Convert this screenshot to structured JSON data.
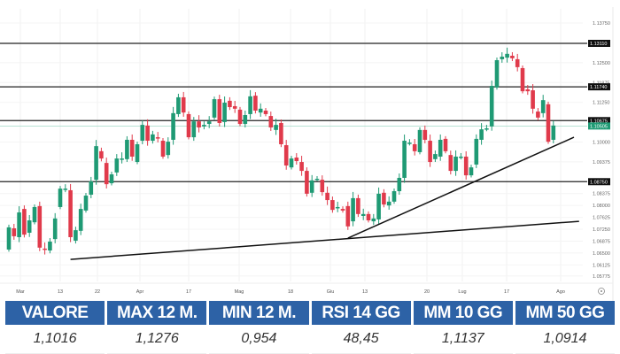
{
  "chart_data": {
    "type": "candlestick",
    "y_axis_ticks": [
      "1.13750",
      "1.12500",
      "1.11875",
      "1.11250",
      "1.10000",
      "1.09375",
      "1.08375",
      "1.08000",
      "1.07625",
      "1.07250",
      "1.06875",
      "1.06500",
      "1.06125",
      "1.05775"
    ],
    "x_axis_ticks": [
      "Mar",
      "13",
      "22",
      "Apr",
      "17",
      "Mag",
      "18",
      "Giu",
      "13",
      "20",
      "Lug",
      "17",
      "Ago"
    ],
    "ylim": [
      1.056,
      1.145
    ],
    "grid": true,
    "levels": [
      {
        "value": 1.1311,
        "label": "1.13110"
      },
      {
        "value": 1.1174,
        "label": "1.11740"
      },
      {
        "value": 1.10675,
        "label": "1.10675"
      },
      {
        "value": 1.0875,
        "label": "1.08750"
      }
    ],
    "last_price": {
      "value": 1.10505,
      "label": "1.10505"
    },
    "trendlines": [
      {
        "from": [
          12,
          1.063
        ],
        "to": [
          111,
          1.075
        ]
      },
      {
        "from": [
          66,
          1.0697
        ],
        "to": [
          110,
          1.1015
        ]
      }
    ],
    "candles_open_close": [
      [
        1.0661,
        1.0731
      ],
      [
        1.0728,
        1.0703
      ],
      [
        1.07,
        1.0778
      ],
      [
        1.0789,
        1.0708
      ],
      [
        1.0714,
        1.0753
      ],
      [
        1.0747,
        1.0795
      ],
      [
        1.0798,
        1.0667
      ],
      [
        1.0664,
        1.0661
      ],
      [
        1.0658,
        1.0686
      ],
      [
        1.0694,
        1.0759
      ],
      [
        1.0795,
        1.0853
      ],
      [
        1.0853,
        1.0853
      ],
      [
        1.0848,
        1.07
      ],
      [
        1.0689,
        1.0722
      ],
      [
        1.072,
        1.0789
      ],
      [
        1.0784,
        1.0831
      ],
      [
        1.0834,
        1.0876
      ],
      [
        1.0881,
        1.0987
      ],
      [
        1.0971,
        1.0948
      ],
      [
        1.0934,
        1.0867
      ],
      [
        1.087,
        1.0898
      ],
      [
        1.0904,
        1.0948
      ],
      [
        1.0948,
        1.0948
      ],
      [
        1.0946,
        1.1007
      ],
      [
        1.1007,
        1.0954
      ],
      [
        1.0937,
        1.0993
      ],
      [
        1.1004,
        1.1054
      ],
      [
        1.1052,
        1.1004
      ],
      [
        1.1004,
        1.1024
      ],
      [
        1.1015,
        1.1012
      ],
      [
        1.1004,
        1.0954
      ],
      [
        1.0959,
        1.1001
      ],
      [
        1.1007,
        1.1091
      ],
      [
        1.1088,
        1.1141
      ],
      [
        1.1141,
        1.1093
      ],
      [
        1.1088,
        1.1015
      ],
      [
        1.1015,
        1.1065
      ],
      [
        1.1065,
        1.1046
      ],
      [
        1.1049,
        1.1054
      ],
      [
        1.1057,
        1.1065
      ],
      [
        1.1077,
        1.1135
      ],
      [
        1.1135,
        1.106
      ],
      [
        1.1063,
        1.1124
      ],
      [
        1.113,
        1.111
      ],
      [
        1.1113,
        1.1105
      ],
      [
        1.1102,
        1.1057
      ],
      [
        1.1057,
        1.1085
      ],
      [
        1.1088,
        1.1144
      ],
      [
        1.1146,
        1.1099
      ],
      [
        1.1093,
        1.1105
      ],
      [
        1.1099,
        1.1088
      ],
      [
        1.1082,
        1.1046
      ],
      [
        1.1038,
        1.1054
      ],
      [
        1.106,
        1.0993
      ],
      [
        1.099,
        1.0926
      ],
      [
        1.092,
        1.0948
      ],
      [
        1.0951,
        1.094
      ],
      [
        1.0937,
        1.0909
      ],
      [
        1.0909,
        1.0837
      ],
      [
        1.084,
        1.0879
      ],
      [
        1.0884,
        1.0884
      ],
      [
        1.0881,
        1.0842
      ],
      [
        1.084,
        1.0817
      ],
      [
        1.0817,
        1.0786
      ],
      [
        1.0792,
        1.0795
      ],
      [
        1.0789,
        1.0784
      ],
      [
        1.0798,
        1.0734
      ],
      [
        1.075,
        1.0823
      ],
      [
        1.0823,
        1.0773
      ],
      [
        1.0767,
        1.0773
      ],
      [
        1.0773,
        1.0753
      ],
      [
        1.075,
        1.0759
      ],
      [
        1.0756,
        1.0837
      ],
      [
        1.084,
        1.0803
      ],
      [
        1.08,
        1.0812
      ],
      [
        1.0812,
        1.0845
      ],
      [
        1.0845,
        1.0887
      ],
      [
        1.0887,
        1.1004
      ],
      [
        1.0998,
        1.0998
      ],
      [
        1.0993,
        1.0971
      ],
      [
        1.0968,
        1.1038
      ],
      [
        1.1038,
        1.1007
      ],
      [
        1.1004,
        1.0937
      ],
      [
        1.0946,
        1.0962
      ],
      [
        1.0954,
        1.1007
      ],
      [
        1.101,
        1.0971
      ],
      [
        1.0959,
        1.0909
      ],
      [
        1.0909,
        1.0954
      ],
      [
        1.0954,
        1.0954
      ],
      [
        1.0954,
        1.0895
      ],
      [
        1.0895,
        1.092
      ],
      [
        1.0929,
        1.101
      ],
      [
        1.1007,
        1.104
      ],
      [
        1.1043,
        1.1043
      ],
      [
        1.1049,
        1.1177
      ],
      [
        1.1172,
        1.1258
      ],
      [
        1.1261,
        1.1269
      ],
      [
        1.1266,
        1.1278
      ],
      [
        1.1272,
        1.1264
      ],
      [
        1.1261,
        1.1236
      ],
      [
        1.1233,
        1.116
      ],
      [
        1.1166,
        1.116
      ],
      [
        1.1163,
        1.1105
      ],
      [
        1.1096,
        1.1077
      ],
      [
        1.1091,
        1.1132
      ],
      [
        1.1119,
        1.1001
      ],
      [
        1.1007,
        1.1052
      ]
    ],
    "colors": {
      "up": "#1f9a74",
      "down": "#e03a4b",
      "level": "#222222",
      "last_price": "#1f9a74"
    }
  },
  "stats": [
    {
      "label": "VALORE",
      "value": "1,1016"
    },
    {
      "label": "MAX 12 M.",
      "value": "1,1276"
    },
    {
      "label": "MIN 12 M.",
      "value": "0,954"
    },
    {
      "label": "RSI 14 GG",
      "value": "48,45"
    },
    {
      "label": "MM 10 GG",
      "value": "1,1137"
    },
    {
      "label": "MM 50 GG",
      "value": "1,0914"
    }
  ],
  "icons": {
    "settings": "settings-icon"
  },
  "table_header_color": "#2d62a6"
}
